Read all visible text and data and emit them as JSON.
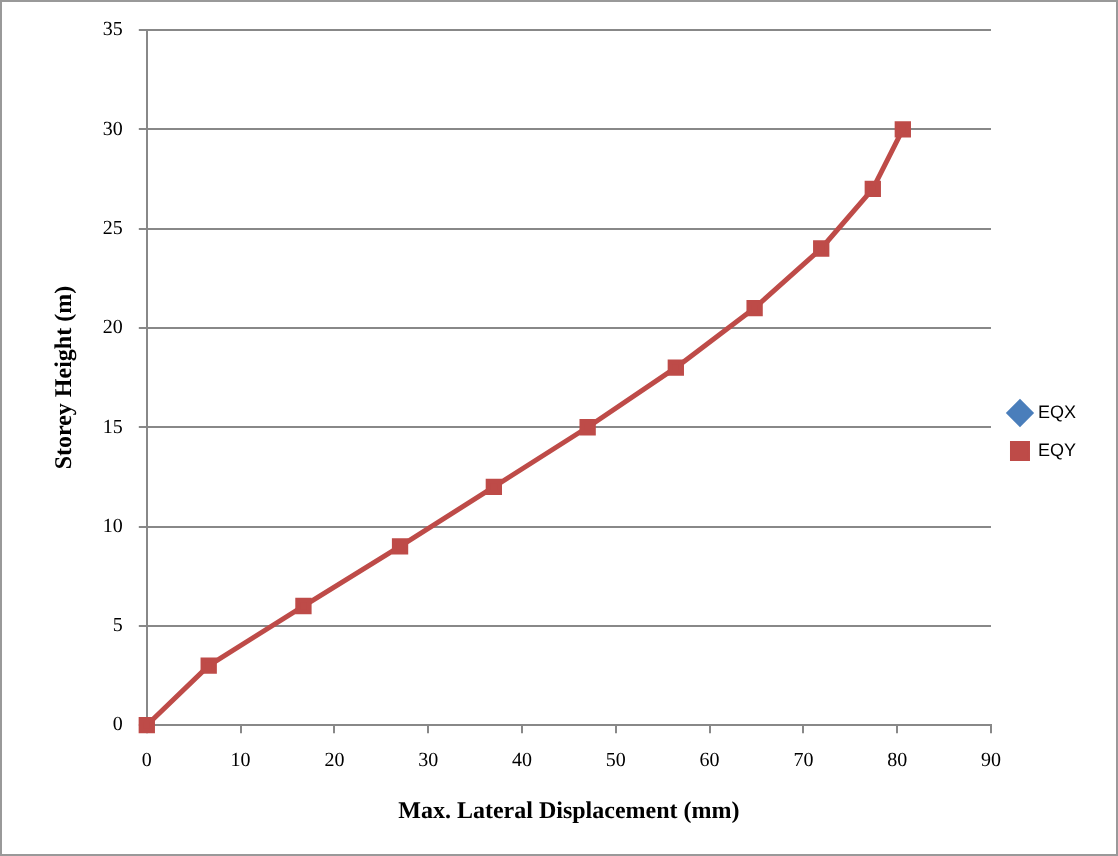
{
  "chart_data": {
    "type": "line",
    "xlabel": "Max. Lateral Displacement (mm)",
    "ylabel": "Storey Height (m)",
    "x": [
      0,
      6.6,
      16.7,
      27,
      37,
      47,
      56.4,
      64.8,
      71.9,
      77.4,
      80.6
    ],
    "series": [
      {
        "name": "EQX",
        "color": "#4a7ebb",
        "marker": "diamond",
        "values": [
          null,
          null,
          null,
          null,
          null,
          null,
          null,
          null,
          null,
          null,
          null
        ]
      },
      {
        "name": "EQY",
        "color": "#be4b48",
        "marker": "square",
        "values": [
          0,
          3,
          6,
          9,
          12,
          15,
          18,
          21,
          24,
          27,
          30
        ]
      }
    ],
    "xlim": [
      0,
      90
    ],
    "xticks": [
      0,
      10,
      20,
      30,
      40,
      50,
      60,
      70,
      80,
      90
    ],
    "ylim": [
      0,
      35
    ],
    "yticks": [
      0,
      5,
      10,
      15,
      20,
      25,
      30,
      35
    ],
    "grid": "y",
    "legend": "right",
    "line_style": "solid"
  }
}
